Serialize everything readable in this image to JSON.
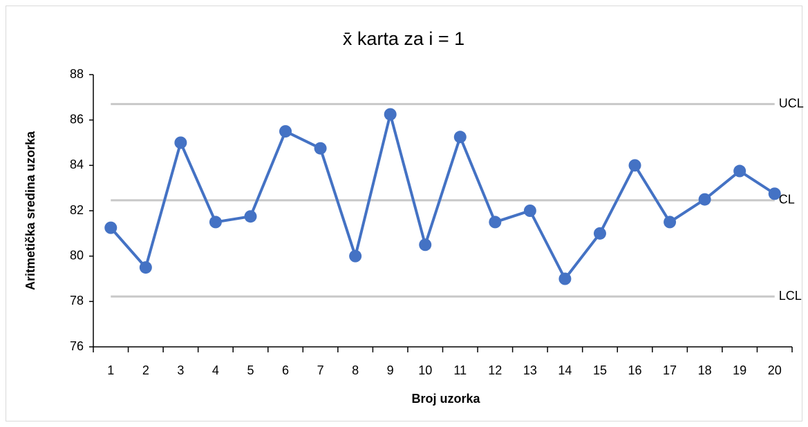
{
  "chart_data": {
    "type": "line",
    "title": "x̄ karta za i = 1",
    "x_label": "Broj uzorka",
    "y_label": "Aritmetička sredina uzorka",
    "categories": [
      "1",
      "2",
      "3",
      "4",
      "5",
      "6",
      "7",
      "8",
      "9",
      "10",
      "11",
      "12",
      "13",
      "14",
      "15",
      "16",
      "17",
      "18",
      "19",
      "20"
    ],
    "series": [
      {
        "color": "#4472c4",
        "values": [
          81.25,
          79.5,
          85,
          81.5,
          81.75,
          85.5,
          84.75,
          80,
          86.25,
          80.5,
          85.25,
          81.5,
          82,
          79,
          81,
          84,
          81.5,
          82.5,
          83.75,
          82.75
        ]
      }
    ],
    "reference_lines": [
      {
        "name": "UCL",
        "value": 86.7
      },
      {
        "name": "CL",
        "value": 82.46
      },
      {
        "name": "LCL",
        "value": 78.22
      }
    ],
    "reference_color": "#c8c8c8",
    "ylim": [
      76,
      88
    ],
    "yticks": [
      76,
      78,
      80,
      82,
      84,
      86,
      88
    ],
    "grid": false
  }
}
